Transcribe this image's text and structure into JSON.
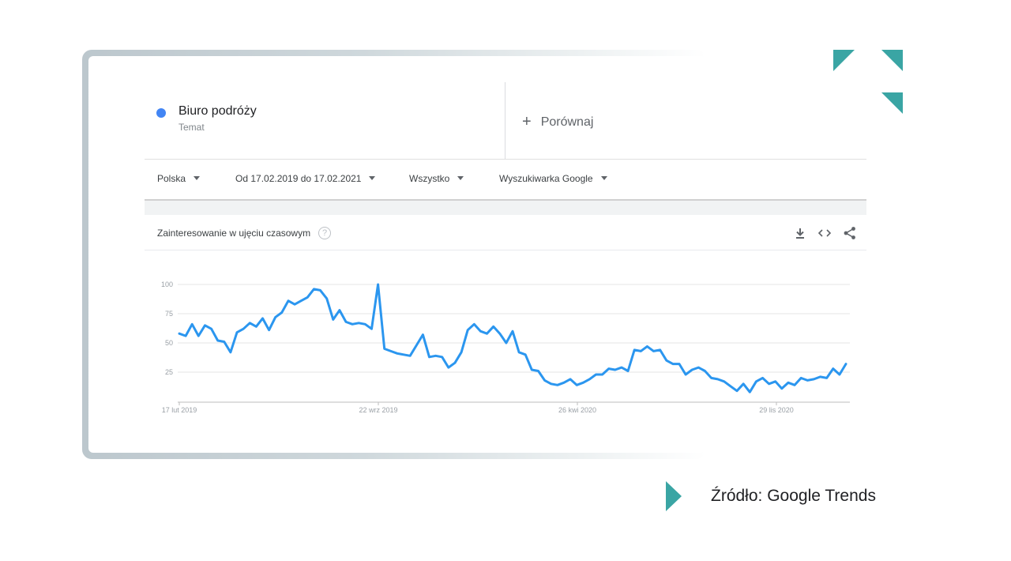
{
  "term": {
    "name": "Biuro podróży",
    "type": "Temat",
    "dot_color": "#4285f4"
  },
  "compare": {
    "plus": "+",
    "label": "Porównaj"
  },
  "filters": {
    "region": "Polska",
    "period": "Od 17.02.2019 do 17.02.2021",
    "category": "Wszystko",
    "source": "Wyszukiwarka Google"
  },
  "panel": {
    "title": "Zainteresowanie w ujęciu czasowym",
    "help": "?",
    "icons": [
      "download-icon",
      "embed-icon",
      "share-icon"
    ]
  },
  "source_note": "Źródło: Google Trends",
  "decor": {
    "accent": "#3aa5a4"
  },
  "chart_data": {
    "type": "line",
    "title": "",
    "xlabel": "",
    "ylabel": "",
    "ylim": [
      0,
      100
    ],
    "y_ticks": [
      100,
      75,
      50,
      25
    ],
    "x_tick_labels": [
      "17 lut 2019",
      "22 wrz 2019",
      "26 kwi 2020",
      "29 lis 2020"
    ],
    "grid": true,
    "series": [
      {
        "color": "#2b96ef",
        "values": [
          58,
          56,
          66,
          56,
          65,
          62,
          52,
          51,
          42,
          59,
          62,
          67,
          64,
          71,
          61,
          72,
          76,
          86,
          83,
          86,
          89,
          96,
          95,
          88,
          70,
          78,
          68,
          66,
          67,
          66,
          62,
          100,
          45,
          43,
          41,
          40,
          39,
          48,
          57,
          38,
          39,
          38,
          29,
          33,
          42,
          61,
          66,
          60,
          58,
          64,
          58,
          50,
          60,
          42,
          40,
          27,
          26,
          18,
          15,
          14,
          16,
          19,
          14,
          16,
          19,
          23,
          23,
          28,
          27,
          29,
          26,
          44,
          43,
          47,
          43,
          44,
          35,
          32,
          32,
          23,
          27,
          29,
          26,
          20,
          19,
          17,
          13,
          9,
          15,
          8,
          17,
          20,
          15,
          17,
          11,
          16,
          14,
          20,
          18,
          19,
          21,
          20,
          28,
          23,
          32
        ]
      }
    ]
  }
}
